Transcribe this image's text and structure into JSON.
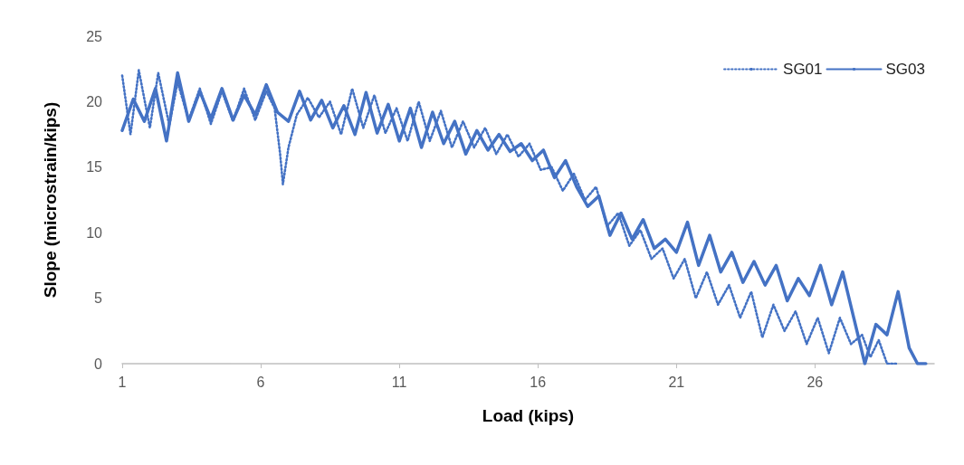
{
  "chart_data": {
    "type": "line",
    "xlabel": "Load (kips)",
    "ylabel": "Slope (microstrain/kips)",
    "xlim": [
      1,
      30.3
    ],
    "xticks": [
      1,
      6,
      11,
      16,
      21,
      26
    ],
    "ylim": [
      0,
      25
    ],
    "yticks": [
      0,
      5,
      10,
      15,
      20,
      25
    ],
    "grid": false,
    "legend": "top right",
    "marker": "none",
    "series": [
      {
        "name": "SG01",
        "color": "#4472c4",
        "line_style": "dotted",
        "x": [
          1.0,
          1.3,
          1.6,
          2.0,
          2.3,
          2.7,
          3.0,
          3.4,
          3.8,
          4.2,
          4.6,
          5.0,
          5.4,
          5.8,
          6.2,
          6.5,
          6.7,
          6.8,
          7.0,
          7.3,
          7.7,
          8.1,
          8.5,
          8.9,
          9.3,
          9.7,
          10.1,
          10.5,
          10.9,
          11.3,
          11.7,
          12.1,
          12.5,
          12.9,
          13.3,
          13.7,
          14.1,
          14.5,
          14.9,
          15.3,
          15.7,
          16.1,
          16.5,
          16.9,
          17.3,
          17.7,
          18.1,
          18.5,
          18.9,
          19.3,
          19.7,
          20.1,
          20.5,
          20.9,
          21.3,
          21.7,
          22.1,
          22.5,
          22.9,
          23.3,
          23.7,
          24.1,
          24.5,
          24.9,
          25.3,
          25.7,
          26.1,
          26.5,
          26.9,
          27.3,
          27.7,
          28.0,
          28.3,
          28.6,
          29.0
        ],
        "values": [
          22.0,
          17.5,
          22.4,
          18.0,
          22.2,
          18.2,
          21.5,
          18.6,
          21.0,
          18.3,
          20.8,
          18.5,
          21.0,
          18.6,
          20.8,
          19.5,
          16.0,
          13.7,
          16.5,
          19.0,
          20.3,
          18.8,
          20.0,
          17.5,
          21.0,
          18.0,
          20.5,
          17.6,
          19.5,
          17.0,
          20.0,
          17.0,
          19.3,
          16.5,
          18.5,
          16.5,
          18.0,
          16.0,
          17.5,
          15.8,
          16.8,
          14.8,
          15.0,
          13.2,
          14.5,
          12.5,
          13.5,
          10.5,
          11.5,
          9.0,
          10.2,
          8.0,
          8.8,
          6.5,
          8.0,
          5.0,
          7.0,
          4.5,
          6.0,
          3.5,
          5.5,
          2.0,
          4.5,
          2.5,
          4.0,
          1.5,
          3.5,
          0.8,
          3.5,
          1.5,
          2.2,
          0.5,
          1.8,
          0.0,
          0.0
        ]
      },
      {
        "name": "SG03",
        "color": "#4472c4",
        "line_style": "solid",
        "x": [
          1.0,
          1.4,
          1.8,
          2.2,
          2.6,
          3.0,
          3.4,
          3.8,
          4.2,
          4.6,
          5.0,
          5.4,
          5.8,
          6.2,
          6.6,
          7.0,
          7.4,
          7.8,
          8.2,
          8.6,
          9.0,
          9.4,
          9.8,
          10.2,
          10.6,
          11.0,
          11.4,
          11.8,
          12.2,
          12.6,
          13.0,
          13.4,
          13.8,
          14.2,
          14.6,
          15.0,
          15.4,
          15.8,
          16.2,
          16.6,
          17.0,
          17.4,
          17.8,
          18.2,
          18.6,
          19.0,
          19.4,
          19.8,
          20.2,
          20.6,
          21.0,
          21.4,
          21.8,
          22.2,
          22.6,
          23.0,
          23.4,
          23.8,
          24.2,
          24.6,
          25.0,
          25.4,
          25.8,
          26.2,
          26.6,
          27.0,
          27.4,
          27.8,
          28.2,
          28.6,
          29.0,
          29.4,
          29.7,
          30.0
        ],
        "values": [
          17.8,
          20.2,
          18.5,
          21.0,
          17.0,
          22.2,
          18.5,
          20.8,
          18.7,
          21.0,
          18.6,
          20.5,
          19.0,
          21.3,
          19.2,
          18.5,
          20.8,
          18.6,
          20.1,
          18.0,
          19.7,
          17.5,
          20.7,
          17.6,
          19.8,
          17.0,
          19.5,
          16.5,
          19.2,
          16.8,
          18.5,
          16.0,
          17.8,
          16.3,
          17.5,
          16.2,
          16.8,
          15.5,
          16.3,
          14.2,
          15.5,
          13.5,
          12.0,
          12.8,
          9.8,
          11.5,
          9.5,
          11.0,
          8.8,
          9.5,
          8.5,
          10.8,
          7.5,
          9.8,
          7.0,
          8.5,
          6.2,
          7.8,
          6.0,
          7.5,
          4.8,
          6.5,
          5.2,
          7.5,
          4.5,
          7.0,
          3.5,
          0.0,
          3.0,
          2.2,
          5.5,
          1.2,
          0.0,
          0.0
        ]
      }
    ]
  }
}
